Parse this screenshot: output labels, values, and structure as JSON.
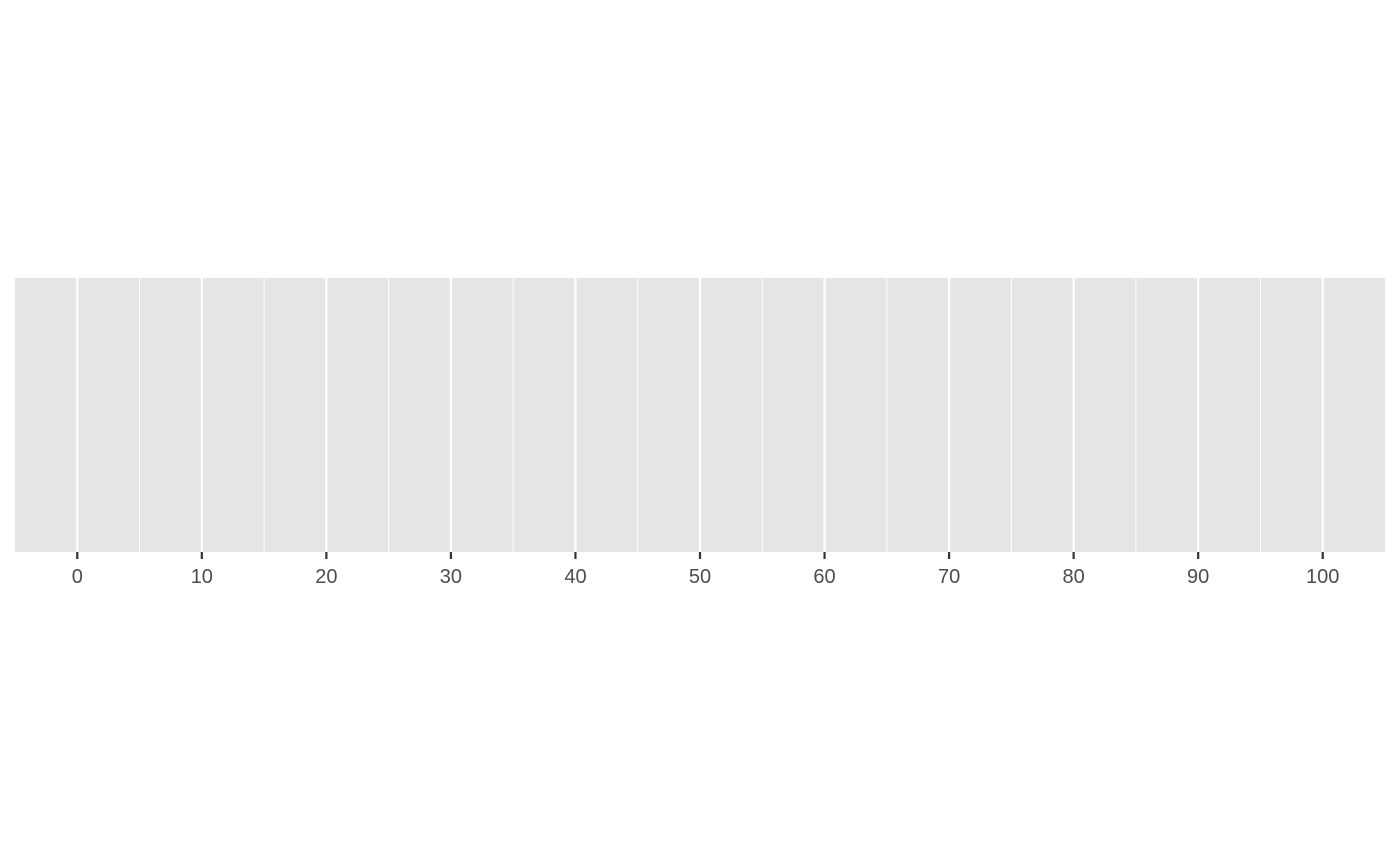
{
  "chart_data": {
    "type": "scatter",
    "x": [],
    "y": [],
    "xlim": [
      -5,
      105
    ],
    "x_ticks": [
      0,
      10,
      20,
      30,
      40,
      50,
      60,
      70,
      80,
      90,
      100
    ],
    "x_tick_labels": [
      "0",
      "10",
      "20",
      "30",
      "40",
      "50",
      "60",
      "70",
      "80",
      "90",
      "100"
    ],
    "x_minor_ticks": [
      5,
      15,
      25,
      35,
      45,
      55,
      65,
      75,
      85,
      95
    ],
    "y_axis_shown": false,
    "grid": true,
    "legend": "none",
    "panel_background": "#e5e5e5",
    "grid_color": "#ffffff",
    "tick_color": "#333333",
    "tick_label_color": "#4d4d4d"
  }
}
